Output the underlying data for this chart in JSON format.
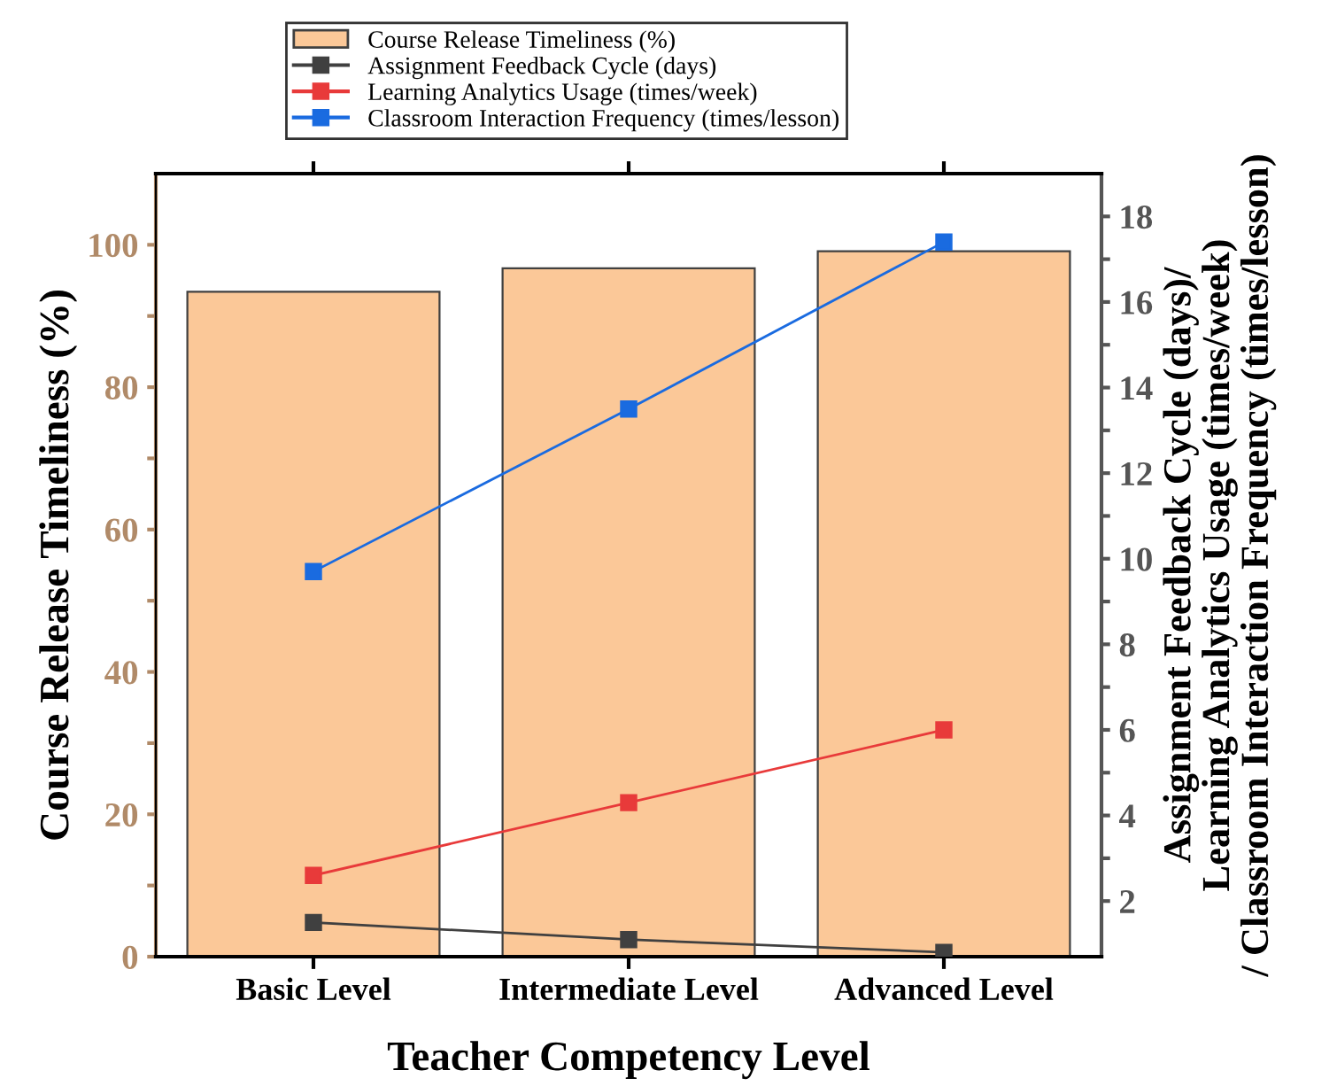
{
  "chart_data": {
    "type": "bar",
    "xlabel": "Teacher Competency Level",
    "ylabel": "Course Release Timeliness (%)",
    "y2label": "Assignment Feedback Cycle (days)/\nLearning Analytics Usage (times/week)\n/ Classroom Interaction Frequency (times/lesson)",
    "categories": [
      "Basic Level",
      "Intermediate Level",
      "Advanced Level"
    ],
    "series": [
      {
        "name": "Course Release Timeliness (%)",
        "color": "#fbc898",
        "values": [
          93.4,
          96.7,
          99.1
        ]
      },
      {
        "name": "Assignment Feedback Cycle (days)",
        "type": "line",
        "axis": "y2",
        "color": "#404040",
        "values": [
          1.5,
          1.1,
          0.8
        ]
      },
      {
        "name": "Learning Analytics Usage (times/week)",
        "type": "line",
        "axis": "y2",
        "color": "#e83a3a",
        "values": [
          2.6,
          4.3,
          6.0
        ]
      },
      {
        "name": "Classroom Interaction Frequency (times/lesson)",
        "type": "line",
        "axis": "y2",
        "color": "#1a6be0",
        "values": [
          9.7,
          13.5,
          17.4
        ]
      }
    ],
    "ylim": [
      0,
      110
    ],
    "yticks": [
      0,
      {
        "value": 10,
        "label": null
      },
      20,
      {
        "value": 30,
        "label": null
      },
      40,
      {
        "value": 50,
        "label": null
      },
      60,
      {
        "value": 70,
        "label": null
      },
      80,
      {
        "value": 90,
        "label": null
      },
      100
    ],
    "y2lim": [
      0.7,
      19
    ],
    "y2ticks": [
      2,
      {
        "value": 3,
        "label": null
      },
      4,
      {
        "value": 5,
        "label": null
      },
      6,
      {
        "value": 7,
        "label": null
      },
      8,
      {
        "value": 9,
        "label": null
      },
      10,
      {
        "value": 11,
        "label": null
      },
      12,
      {
        "value": 13,
        "label": null
      },
      14,
      {
        "value": 15,
        "label": null
      },
      16,
      {
        "value": 17,
        "label": null
      },
      18
    ],
    "marker": "square",
    "line_style": "solid",
    "legend": "top",
    "grid": false
  }
}
